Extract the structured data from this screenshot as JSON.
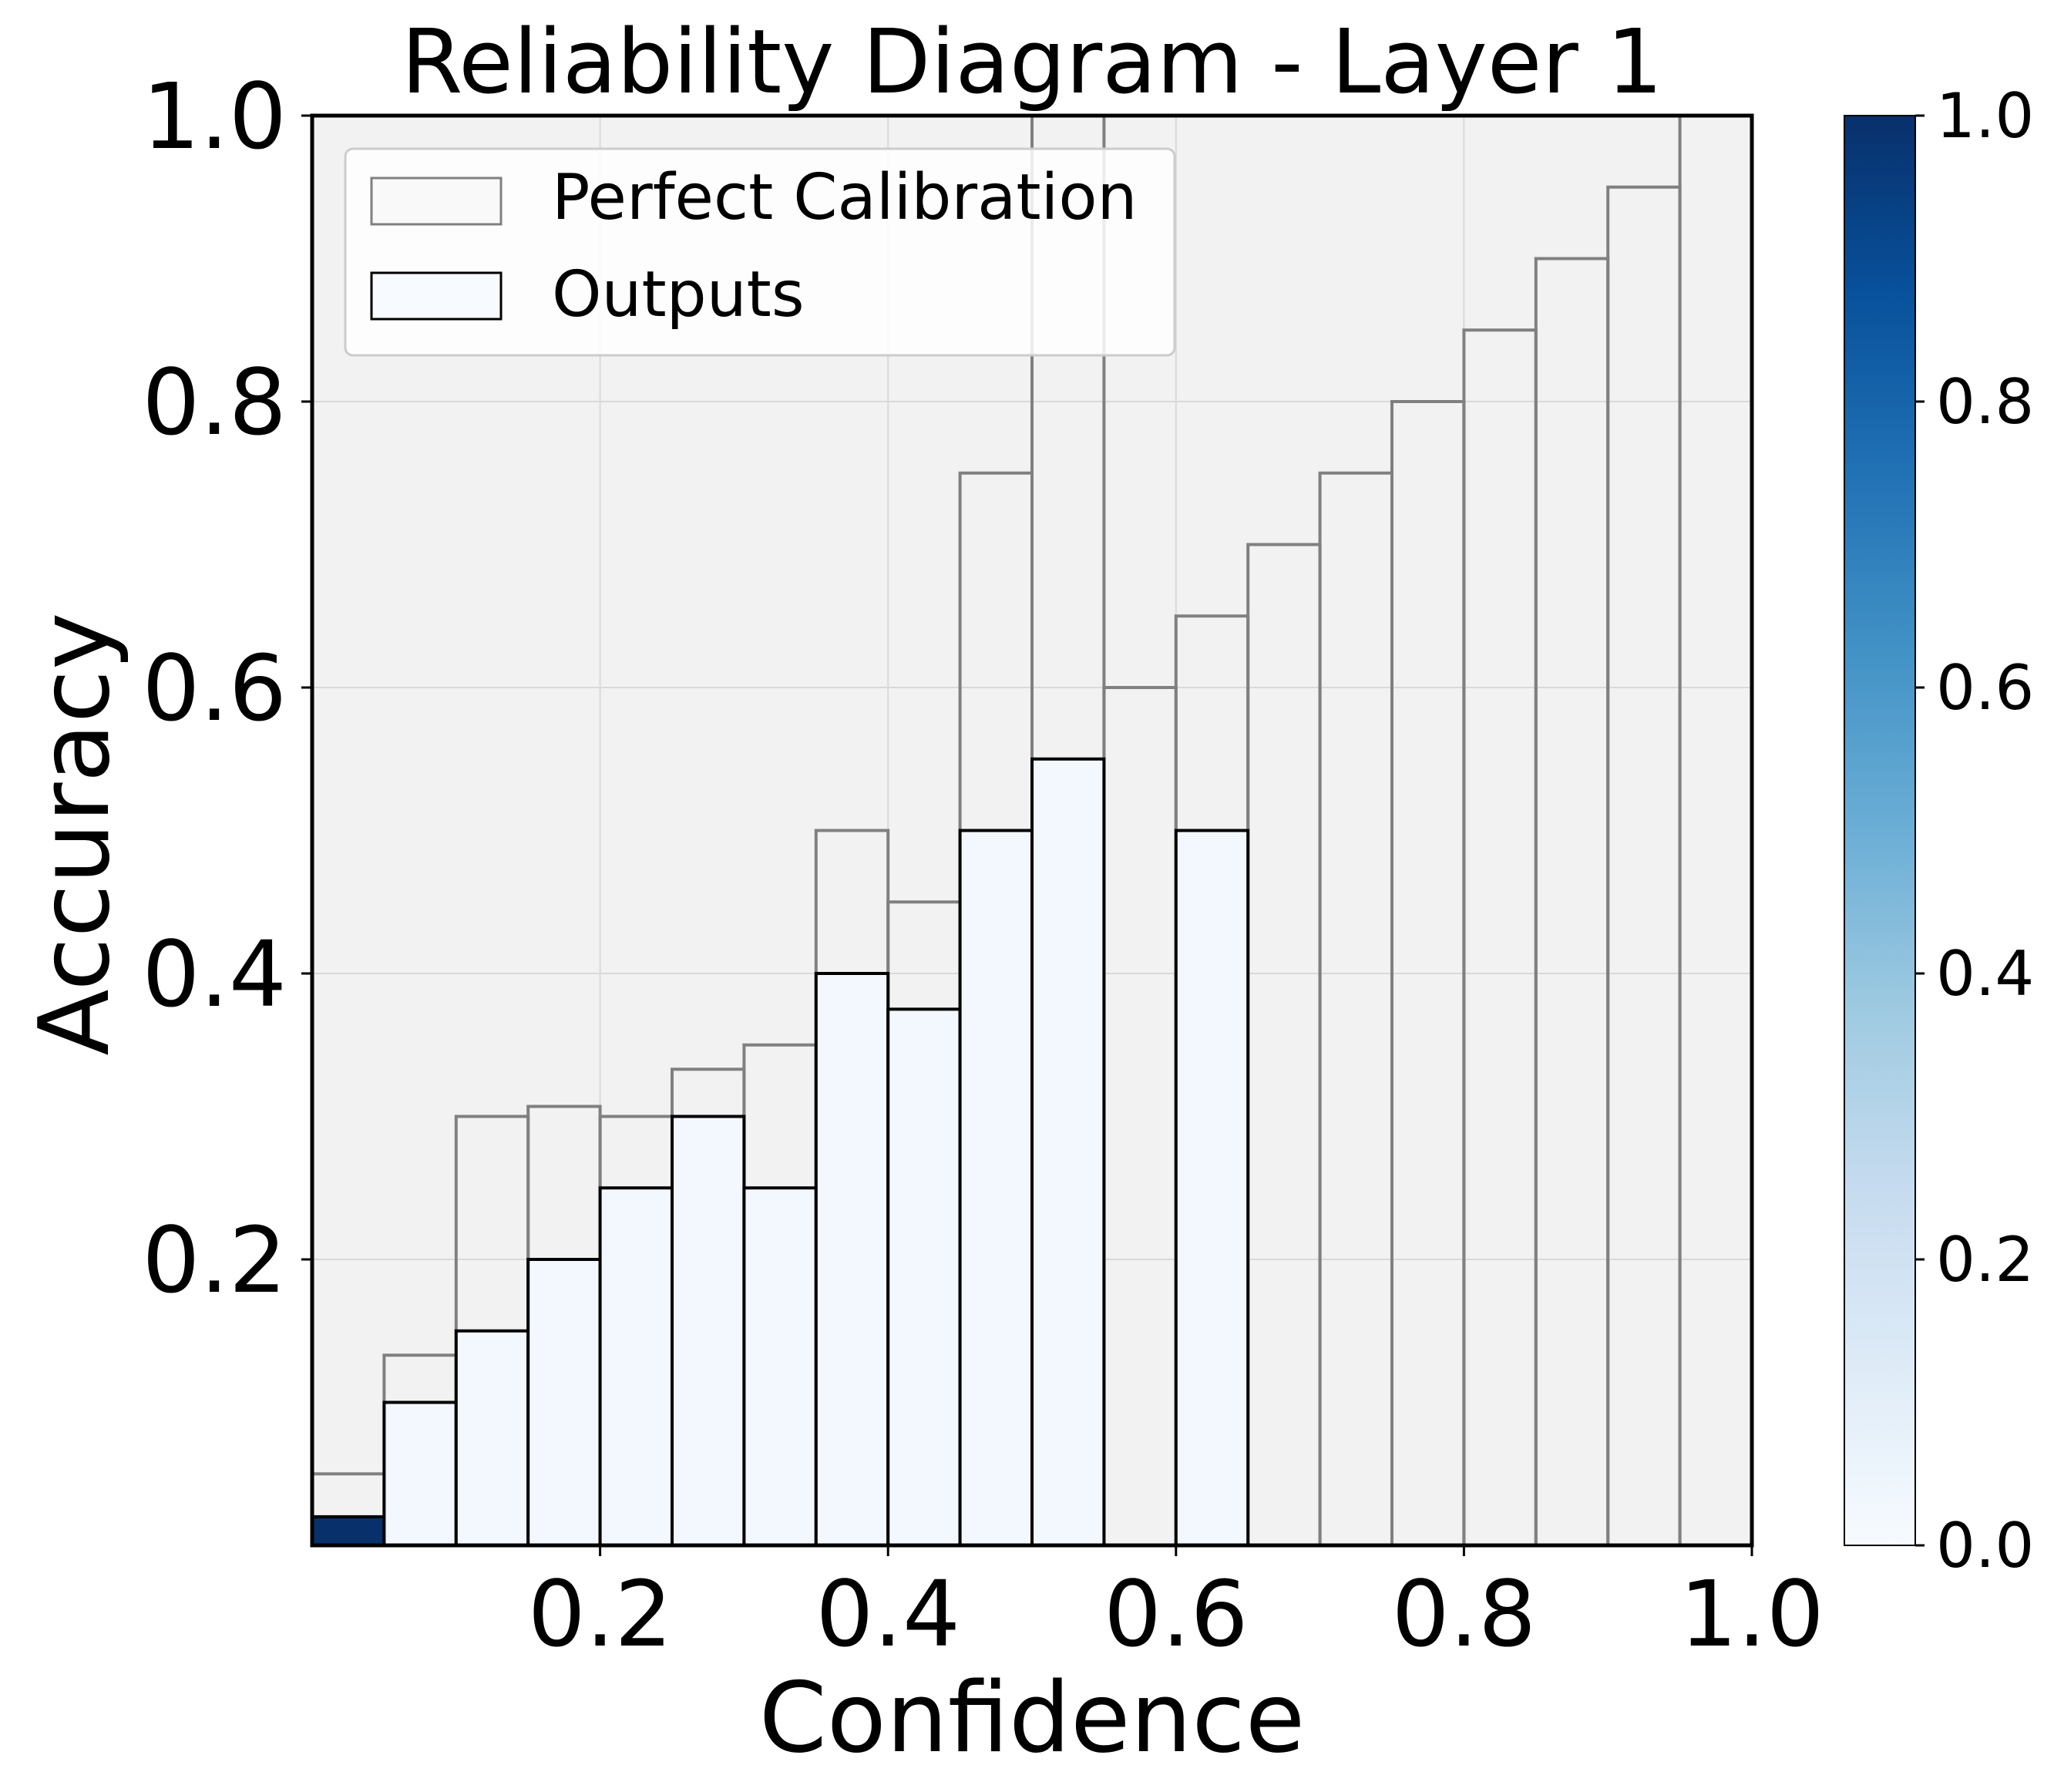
{
  "chart_data": {
    "type": "bar",
    "title": "Reliability Diagram - Layer 1",
    "xlabel": "Confidence",
    "ylabel": "Accuracy",
    "xlim": [
      0,
      1
    ],
    "ylim": [
      0,
      1
    ],
    "bin_width": 0.05,
    "bin_left_edges": [
      0.0,
      0.05,
      0.1,
      0.15,
      0.2,
      0.25,
      0.3,
      0.35,
      0.4,
      0.45,
      0.5,
      0.55,
      0.6,
      0.65,
      0.7,
      0.75,
      0.8,
      0.85,
      0.9,
      0.95
    ],
    "x_ticks": [
      0.2,
      0.4,
      0.6,
      0.8,
      1.0
    ],
    "x_tick_labels": [
      "0.2",
      "0.4",
      "0.6",
      "0.8",
      "1.0"
    ],
    "y_ticks": [
      0.2,
      0.4,
      0.6,
      0.8,
      1.0
    ],
    "y_tick_labels": [
      "0.2",
      "0.4",
      "0.6",
      "0.8",
      "1.0"
    ],
    "grid": true,
    "legend_position": "top-left",
    "series": [
      {
        "name": "Perfect Calibration",
        "values": [
          0.05,
          0.133,
          0.3,
          0.307,
          0.3,
          0.333,
          0.35,
          0.5,
          0.45,
          0.75,
          1.0,
          0.6,
          0.65,
          0.7,
          0.75,
          0.8,
          0.85,
          0.9,
          0.95,
          1.0
        ],
        "edge_color": "#808080"
      },
      {
        "name": "Outputs",
        "values": [
          0.02,
          0.1,
          0.15,
          0.2,
          0.25,
          0.3,
          0.25,
          0.4,
          0.375,
          0.5,
          0.55,
          0.0,
          0.5,
          0.0,
          0.0,
          0.0,
          0.0,
          0.0,
          0.0,
          0.0
        ],
        "color_values": [
          1.0,
          0.02,
          0.02,
          0.02,
          0.02,
          0.02,
          0.02,
          0.02,
          0.02,
          0.02,
          0.02,
          0.0,
          0.02,
          0.0,
          0.0,
          0.0,
          0.0,
          0.0,
          0.0,
          0.0
        ],
        "edge_color": "#000000"
      }
    ],
    "colorbar": {
      "colormap": "Blues",
      "range": [
        0,
        1
      ],
      "ticks": [
        0.0,
        0.2,
        0.4,
        0.6,
        0.8,
        1.0
      ],
      "tick_labels": [
        "0.0",
        "0.2",
        "0.4",
        "0.6",
        "0.8",
        "1.0"
      ]
    }
  }
}
